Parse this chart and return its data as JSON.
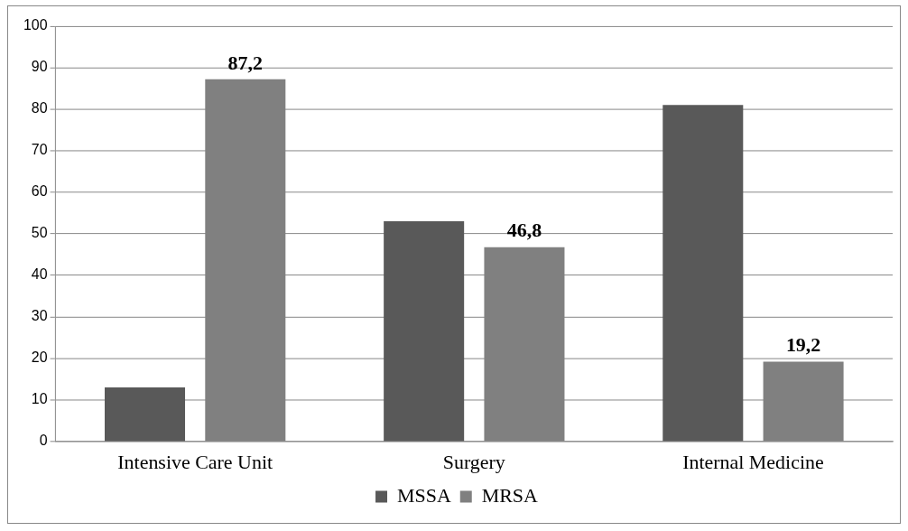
{
  "chart_data": {
    "type": "bar",
    "categories": [
      "Intensive Care Unit",
      "Surgery",
      "Internal Medicine"
    ],
    "series": [
      {
        "name": "MSSA",
        "color": "#595959",
        "values": [
          13,
          53,
          81
        ]
      },
      {
        "name": "MRSA",
        "color": "#808080",
        "values": [
          87.2,
          46.8,
          19.2
        ],
        "value_labels": [
          "87,2",
          "46,8",
          "19,2"
        ]
      }
    ],
    "ylim": [
      0,
      100
    ],
    "yticks": [
      0,
      10,
      20,
      30,
      40,
      50,
      60,
      70,
      80,
      90,
      100
    ],
    "grid": "y",
    "legend": "bottom"
  }
}
